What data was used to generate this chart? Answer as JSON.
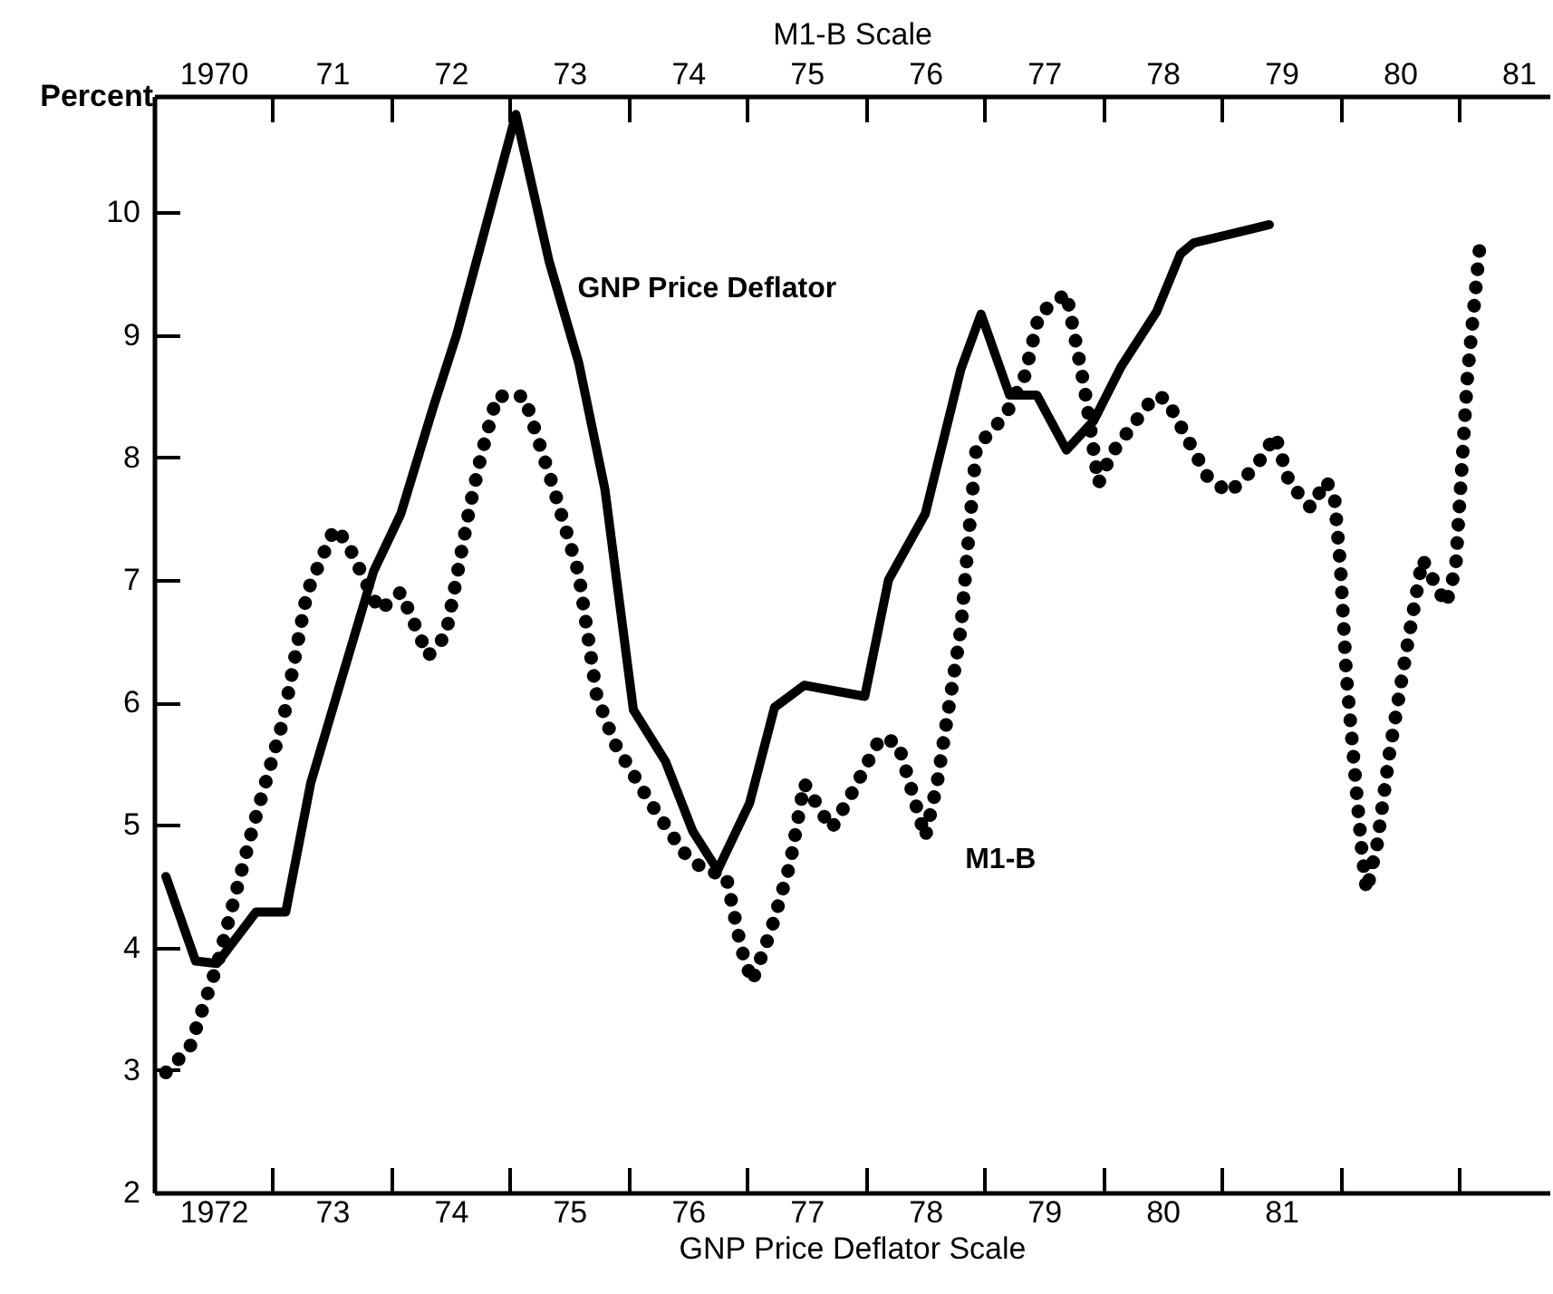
{
  "chart_data": {
    "type": "line",
    "ylabel": "Percent",
    "xlabel": "GNP Price Deflator Scale",
    "x2label": "M1-B Scale",
    "xlim": [
      1971.5,
      1983.26
    ],
    "xticks": [
      {
        "value": 1972,
        "label": "1972"
      },
      {
        "value": 1972.5,
        "label": null
      },
      {
        "value": 1973,
        "label": "73"
      },
      {
        "value": 1973.5,
        "label": null
      },
      {
        "value": 1974,
        "label": "74"
      },
      {
        "value": 1974.5,
        "label": null
      },
      {
        "value": 1975,
        "label": "75"
      },
      {
        "value": 1975.5,
        "label": null
      },
      {
        "value": 1976,
        "label": "76"
      },
      {
        "value": 1976.5,
        "label": null
      },
      {
        "value": 1977,
        "label": "77"
      },
      {
        "value": 1977.5,
        "label": null
      },
      {
        "value": 1978,
        "label": "78"
      },
      {
        "value": 1978.5,
        "label": null
      },
      {
        "value": 1979,
        "label": "79"
      },
      {
        "value": 1979.5,
        "label": null
      },
      {
        "value": 1980,
        "label": "80"
      },
      {
        "value": 1980.5,
        "label": null
      },
      {
        "value": 1981,
        "label": "81"
      },
      {
        "value": 1981.5,
        "label": null
      },
      {
        "value": 1982.5,
        "label": null
      }
    ],
    "x2lim": [
      1969.5,
      1981.26
    ],
    "x2ticks": [
      {
        "value": 1970,
        "label": "1970"
      },
      {
        "value": 1970.5,
        "label": null
      },
      {
        "value": 1971,
        "label": "71"
      },
      {
        "value": 1971.5,
        "label": null
      },
      {
        "value": 1972,
        "label": "72"
      },
      {
        "value": 1972.5,
        "label": null
      },
      {
        "value": 1973,
        "label": "73"
      },
      {
        "value": 1973.5,
        "label": null
      },
      {
        "value": 1974,
        "label": "74"
      },
      {
        "value": 1974.5,
        "label": null
      },
      {
        "value": 1975,
        "label": "75"
      },
      {
        "value": 1975.5,
        "label": null
      },
      {
        "value": 1976,
        "label": "76"
      },
      {
        "value": 1976.5,
        "label": null
      },
      {
        "value": 1977,
        "label": "77"
      },
      {
        "value": 1977.5,
        "label": null
      },
      {
        "value": 1978,
        "label": "78"
      },
      {
        "value": 1978.5,
        "label": null
      },
      {
        "value": 1979,
        "label": "79"
      },
      {
        "value": 1979.5,
        "label": null
      },
      {
        "value": 1980,
        "label": "80"
      },
      {
        "value": 1980.5,
        "label": null
      },
      {
        "value": 1981,
        "label": "81"
      }
    ],
    "ylim": [
      2,
      10.95
    ],
    "yticks": [
      2,
      3,
      4,
      5,
      6,
      7,
      8,
      9,
      10
    ],
    "grid": false,
    "series": [
      {
        "name": "GNP Price Deflator",
        "color": "#000000",
        "line_style": "solid",
        "x": [
          1971.6,
          1971.85,
          1972.03,
          1972.36,
          1972.61,
          1972.82,
          1973.04,
          1973.35,
          1973.58,
          1973.85,
          1974.05,
          1974.55,
          1974.83,
          1975.08,
          1975.3,
          1975.54,
          1975.81,
          1976.04,
          1976.25,
          1976.52,
          1976.73,
          1976.98,
          1977.49,
          1977.69,
          1978.0,
          1978.3,
          1978.47,
          1978.71,
          1978.94,
          1979.19,
          1979.42,
          1979.65,
          1979.95,
          1980.15,
          1980.26,
          1980.9
        ],
        "values": [
          4.58,
          3.89,
          3.87,
          4.29,
          4.29,
          5.34,
          6.06,
          7.07,
          7.54,
          8.4,
          9.0,
          10.8,
          9.6,
          8.77,
          7.74,
          5.94,
          5.52,
          4.95,
          4.63,
          5.18,
          5.96,
          6.14,
          6.05,
          7.0,
          7.54,
          8.72,
          9.17,
          8.51,
          8.51,
          8.06,
          8.3,
          8.74,
          9.19,
          9.66,
          9.75,
          9.9
        ]
      },
      {
        "name": "M1-B",
        "color": "#000000",
        "line_style": "dotted",
        "axis": "x2",
        "x": [
          1969.6,
          1969.8,
          1970.03,
          1970.33,
          1970.59,
          1970.79,
          1971.02,
          1971.12,
          1971.3,
          1971.4,
          1971.58,
          1971.81,
          1971.96,
          1972.16,
          1972.26,
          1972.39,
          1972.62,
          1972.87,
          1973.08,
          1973.23,
          1973.38,
          1973.69,
          1973.96,
          1974.14,
          1974.32,
          1974.45,
          1974.54,
          1974.7,
          1974.86,
          1974.98,
          1975.21,
          1975.36,
          1975.62,
          1975.77,
          1976.0,
          1976.1,
          1976.3,
          1976.43,
          1976.68,
          1976.84,
          1976.96,
          1977.19,
          1977.34,
          1977.46,
          1977.57,
          1977.93,
          1978.03,
          1978.38,
          1978.56,
          1978.79,
          1978.95,
          1979.07,
          1979.25,
          1979.38,
          1979.45,
          1979.5,
          1979.55,
          1979.63,
          1979.68,
          1979.72,
          1979.81,
          1979.91,
          1980.06,
          1980.19,
          1980.39,
          1980.47,
          1980.57,
          1980.67
        ],
        "values": [
          2.98,
          3.18,
          3.85,
          4.97,
          5.86,
          6.9,
          7.42,
          7.32,
          6.95,
          6.75,
          6.9,
          6.38,
          6.55,
          7.59,
          8.03,
          8.5,
          8.5,
          7.74,
          7.05,
          6.06,
          5.67,
          5.17,
          4.78,
          4.63,
          4.59,
          3.99,
          3.72,
          4.14,
          4.68,
          5.34,
          4.97,
          5.22,
          5.71,
          5.67,
          4.9,
          5.34,
          6.6,
          8.08,
          8.35,
          8.67,
          9.17,
          9.34,
          8.58,
          7.79,
          8.03,
          8.5,
          8.48,
          7.84,
          7.71,
          7.93,
          8.18,
          7.79,
          7.59,
          7.81,
          7.66,
          7.1,
          6.21,
          5.32,
          4.78,
          4.46,
          4.85,
          5.57,
          6.45,
          7.17,
          6.8,
          7.1,
          8.67,
          9.69
        ]
      }
    ]
  }
}
